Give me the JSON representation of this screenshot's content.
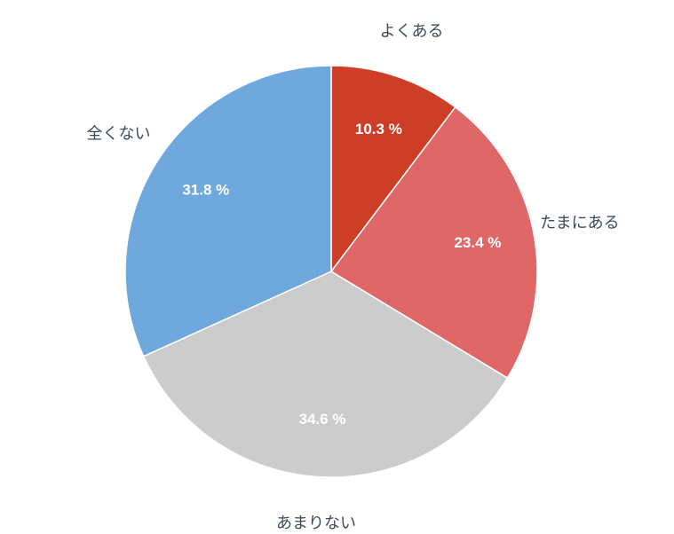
{
  "chart_data": {
    "type": "pie",
    "categories": [
      "よくある",
      "たまにある",
      "あまりない",
      "全くない"
    ],
    "values": [
      10.3,
      23.4,
      34.6,
      31.8
    ],
    "value_labels": [
      "10.3 %",
      "23.4 %",
      "34.6 %",
      "31.8 %"
    ],
    "colors": [
      "#cc3f26",
      "#e06767",
      "#cccccc",
      "#6fa8dc"
    ]
  }
}
